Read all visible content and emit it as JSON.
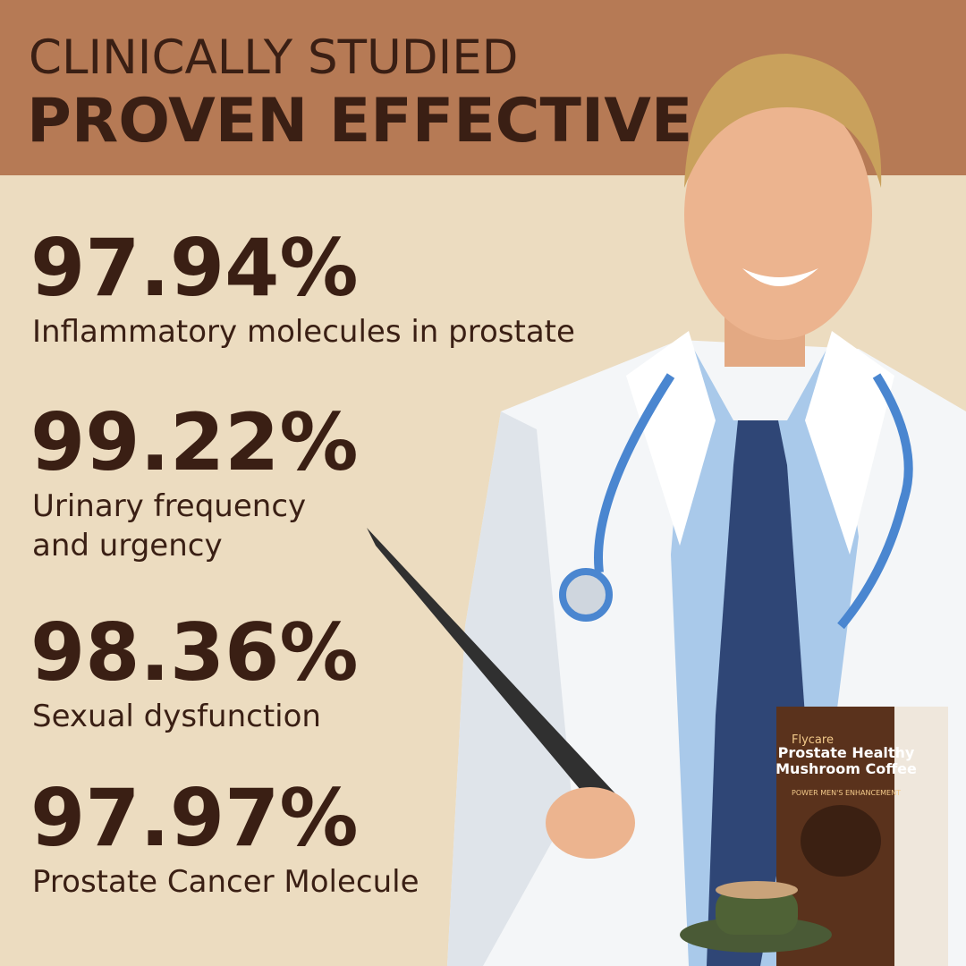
{
  "header": {
    "line1": "CLINICALLY STUDIED",
    "line2": "PROVEN EFFECTIVE"
  },
  "stats": [
    {
      "value": "97.94%",
      "lines": [
        "Inflammatory molecules in prostate"
      ]
    },
    {
      "value": "99.22%",
      "lines": [
        "Urinary frequency",
        "and urgency"
      ]
    },
    {
      "value": "98.36%",
      "lines": [
        "Sexual dysfunction"
      ]
    },
    {
      "value": "97.97%",
      "lines": [
        "Prostate Cancer Molecule"
      ]
    }
  ],
  "product": {
    "brand": "Flycare",
    "name1": "Prostate Healthy",
    "name2": "Mushroom Coffee",
    "tagline": "POWER MEN'S ENHANCEMENT"
  }
}
